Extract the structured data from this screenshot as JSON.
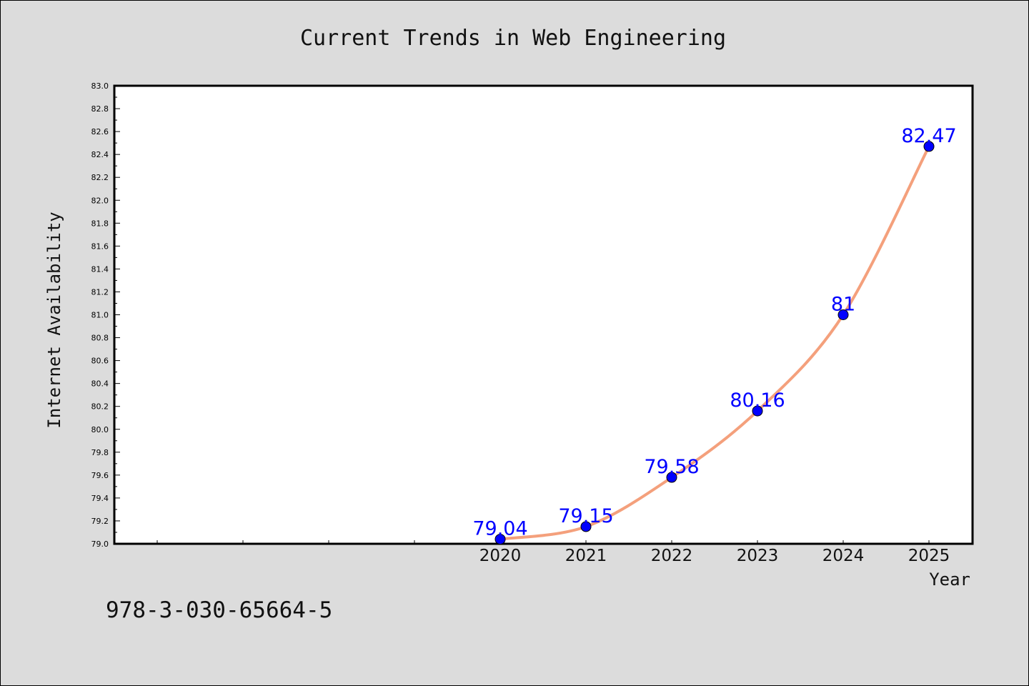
{
  "chart_data": {
    "type": "line",
    "title": "Current Trends in Web Engineering",
    "xlabel": "Year",
    "ylabel": "Internet Availability",
    "categories": [
      "2020",
      "2021",
      "2022",
      "2023",
      "2024",
      "2025"
    ],
    "values": [
      79.04,
      79.15,
      79.58,
      80.16,
      81,
      82.47
    ],
    "data_labels": [
      "79.04",
      "79.15",
      "79.58",
      "80.16",
      "81",
      "82.47"
    ],
    "ylim": [
      79.0,
      83.0
    ],
    "yticks": [
      "79.0",
      "79.2",
      "79.4",
      "79.6",
      "79.8",
      "80.0",
      "80.2",
      "80.4",
      "80.6",
      "80.8",
      "81.0",
      "81.2",
      "81.4",
      "81.6",
      "81.8",
      "82.0",
      "82.2",
      "82.4",
      "82.6",
      "82.8",
      "83.0"
    ],
    "legend": "none",
    "grid": false,
    "line_color": "#f4a07c",
    "marker_color": "#0000ff",
    "label_color": "#0000ff"
  },
  "footer": {
    "isbn": "978-3-030-65664-5"
  }
}
